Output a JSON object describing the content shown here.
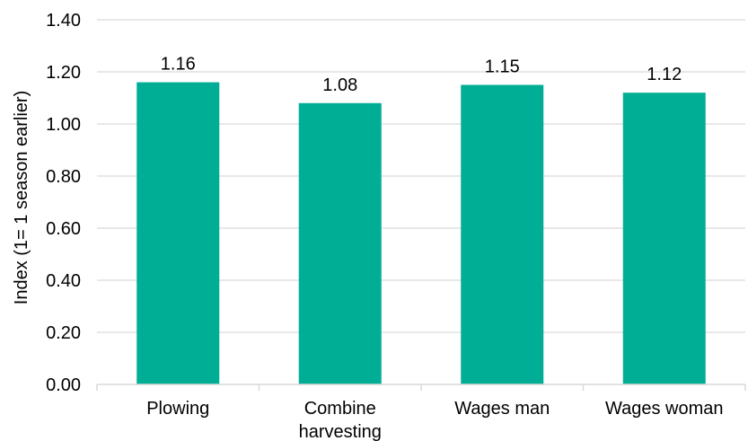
{
  "chart_data": {
    "type": "bar",
    "categories": [
      [
        "Plowing"
      ],
      [
        "Combine",
        "harvesting"
      ],
      [
        "Wages man"
      ],
      [
        "Wages woman"
      ]
    ],
    "values": [
      1.16,
      1.08,
      1.15,
      1.12
    ],
    "value_labels": [
      "1.16",
      "1.08",
      "1.15",
      "1.12"
    ],
    "title": "",
    "xlabel": "",
    "ylabel": "Index (1= 1 season earlier)",
    "ylim": [
      0,
      1.4
    ],
    "yticks": [
      "0.00",
      "0.20",
      "0.40",
      "0.60",
      "0.80",
      "1.00",
      "1.20",
      "1.40"
    ],
    "grid": "horizontal",
    "bar_color": "#00AE96",
    "grid_color": "#D9D9D9"
  }
}
